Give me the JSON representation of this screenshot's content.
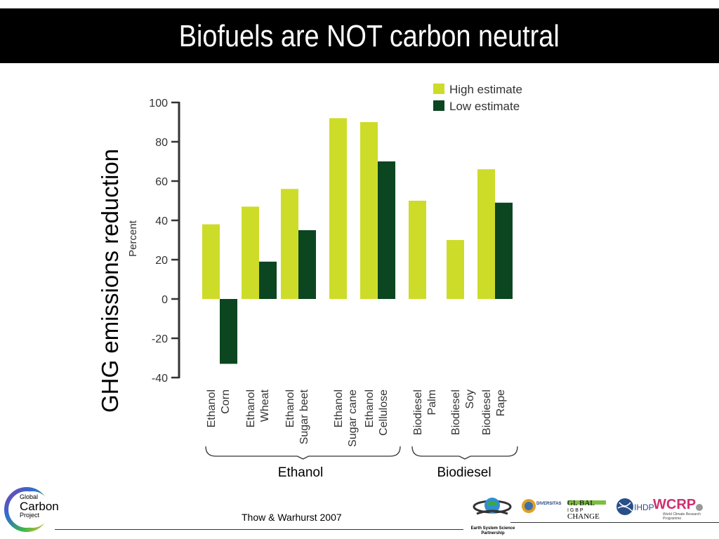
{
  "slide": {
    "title": "Biofuels are NOT carbon neutral",
    "side_label": "GHG emissions reduction",
    "citation": "Thow & Warhurst 2007"
  },
  "chart_data": {
    "type": "bar",
    "ylabel": "Percent",
    "ylim": [
      -40,
      100
    ],
    "yticks": [
      100,
      80,
      60,
      40,
      20,
      0,
      -20,
      -40
    ],
    "categories": [
      [
        "Ethanol",
        "Corn"
      ],
      [
        "Ethanol",
        "Wheat"
      ],
      [
        "Ethanol",
        "Sugar beet"
      ],
      [
        "Ethanol",
        "Sugar cane"
      ],
      [
        "Ethanol",
        "Cellulose"
      ],
      [
        "Biodiesel",
        "Palm"
      ],
      [
        "Biodiesel",
        "Soy"
      ],
      [
        "Biodiesel",
        "Rape"
      ]
    ],
    "series": [
      {
        "name": "High estimate",
        "color": "#cddc29",
        "values": [
          38,
          47,
          56,
          92,
          90,
          50,
          30,
          66
        ]
      },
      {
        "name": "Low estimate",
        "color": "#0b4620",
        "values": [
          -33,
          19,
          35,
          null,
          70,
          null,
          null,
          49
        ]
      }
    ],
    "groups": [
      {
        "label": "Ethanol",
        "span": [
          0,
          4
        ]
      },
      {
        "label": "Biodiesel",
        "span": [
          5,
          7
        ]
      }
    ],
    "legend_position": "top-right",
    "grid": false
  },
  "logos": {
    "gcp": [
      "Global",
      "Carbon",
      "Project"
    ],
    "essp": "Earth System Science Partnership",
    "diversitas": "DIVERSITAS",
    "global_change": [
      "GL BAL",
      "I G B P",
      "CHANGE"
    ],
    "ihdp": "IHDP",
    "wcrp": "WCRP",
    "wcrp_sub": "World Climate Research Programme"
  }
}
